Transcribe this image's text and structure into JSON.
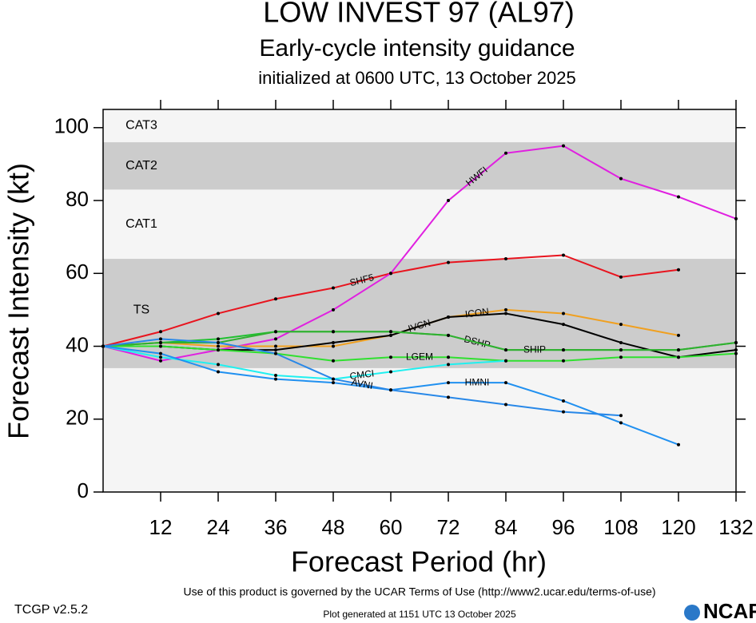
{
  "chart_data": {
    "type": "line",
    "title": "LOW INVEST 97 (AL97)",
    "subtitle": "Early-cycle intensity guidance",
    "init_line": "initialized at 0600 UTC, 13 October 2025",
    "x_label": "Forecast Period (hr)",
    "y_label": "Forecast Intensity (kt)",
    "xlim": [
      0,
      132
    ],
    "ylim": [
      0,
      105
    ],
    "xticks": [
      12,
      24,
      36,
      48,
      60,
      72,
      84,
      96,
      108,
      120,
      132
    ],
    "yticks": [
      0,
      20,
      40,
      60,
      80,
      100
    ],
    "bands": [
      {
        "label": "TS",
        "from": 34,
        "to": 64,
        "color": "#cccccc"
      },
      {
        "label": "CAT1",
        "from": 64,
        "to": 83,
        "color": "#f5f5f5"
      },
      {
        "label": "CAT2",
        "from": 83,
        "to": 96,
        "color": "#cccccc"
      },
      {
        "label": "CAT3",
        "from": 96,
        "to": 105,
        "color": "#f5f5f5"
      }
    ],
    "x": [
      0,
      12,
      24,
      36,
      48,
      60,
      72,
      84,
      96,
      108,
      120,
      132
    ],
    "series": [
      {
        "name": "SHF5",
        "color": "#e8141e",
        "values": [
          40,
          44,
          49,
          53,
          56,
          60,
          63,
          64,
          65,
          59,
          61,
          null
        ]
      },
      {
        "name": "HWFI",
        "color": "#e020e0",
        "values": [
          40,
          36,
          39,
          42,
          50,
          60,
          80,
          93,
          95,
          86,
          81,
          75
        ]
      },
      {
        "name": "ICON",
        "color": "#f0a020",
        "values": [
          40,
          41,
          40,
          40,
          40,
          43,
          48,
          50,
          49,
          46,
          43,
          null
        ]
      },
      {
        "name": "IVCN",
        "color": "#000000",
        "values": [
          40,
          40,
          39,
          39,
          41,
          43,
          48,
          49,
          46,
          41,
          37,
          39
        ]
      },
      {
        "name": "DSHP",
        "color": "#20c030",
        "values": [
          40,
          41,
          42,
          44,
          44,
          44,
          43,
          39,
          39,
          39,
          39,
          41
        ]
      },
      {
        "name": "SHIP",
        "color": "#30b030",
        "values": [
          40,
          41,
          41,
          44,
          44,
          44,
          43,
          39,
          39,
          39,
          39,
          41
        ]
      },
      {
        "name": "LGEM",
        "color": "#30e030",
        "values": [
          40,
          40,
          39,
          38,
          36,
          37,
          37,
          36,
          36,
          37,
          37,
          38
        ]
      },
      {
        "name": "CMCI",
        "color": "#20f0f0",
        "values": [
          40,
          37,
          35,
          32,
          31,
          33,
          35,
          36,
          null,
          null,
          null,
          null
        ]
      },
      {
        "name": "HMNI",
        "color": "#2090f0",
        "values": [
          40,
          38,
          33,
          31,
          30,
          28,
          30,
          30,
          25,
          19,
          13,
          null
        ]
      },
      {
        "name": "AVNI",
        "color": "#2888e8",
        "values": [
          40,
          42,
          41,
          38,
          31,
          28,
          26,
          24,
          22,
          21,
          null,
          null
        ]
      }
    ],
    "terms": "Use of this product is governed by the UCAR Terms of Use (http://www2.ucar.edu/terms-of-use)",
    "version": "TCGP v2.5.2",
    "generated": "Plot generated at 1151 UTC   13 October 2025",
    "logo": "NCAR"
  }
}
